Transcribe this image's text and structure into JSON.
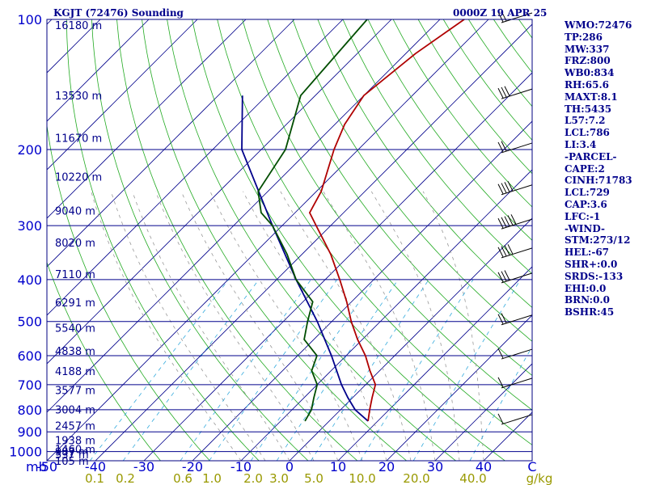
{
  "header": {
    "station": "KGJT (72476) Sounding",
    "time": "0000Z 19 APR 25"
  },
  "pressure_labels": [
    "100",
    "200",
    "300",
    "400",
    "500",
    "600",
    "700",
    "800",
    "900",
    "1000"
  ],
  "pressure_unit": "mb",
  "temp_labels": [
    "-50",
    "-40",
    "-30",
    "-20",
    "-10",
    "0",
    "10",
    "20",
    "30",
    "40",
    "C"
  ],
  "mixing_labels": [
    "0.1",
    "0.2",
    "0.6",
    "1.0",
    "2.0",
    "3.0",
    "5.0",
    "10.0",
    "20.0",
    "40.0",
    "g/kg"
  ],
  "height_labels": [
    "16180 m",
    "13530 m",
    "11670 m",
    "10220 m",
    "9040 m",
    "8020 m",
    "7110 m",
    "6291 m",
    "5540 m",
    "4838 m",
    "4188 m",
    "3577 m",
    "3004 m",
    "2457 m",
    "1938 m",
    "1460 m",
    "987 m",
    "537 m",
    "105 m"
  ],
  "indices": [
    "WMO:72476",
    "TP:286",
    "MW:337",
    "FRZ:800",
    "WB0:834",
    "RH:65.6",
    "MAXT:8.1",
    "TH:5435",
    "L57:7.2",
    "LCL:786",
    "LI:3.4",
    "-PARCEL-",
    "CAPE:2",
    "CINH:71783",
    "LCL:729",
    "CAP:3.6",
    "LFC:-1",
    "-WIND-",
    "STM:273/12",
    "HEL:-67",
    "SHR+:0.0",
    "SRDS:-133",
    "EHI:0.0",
    "BRN:0.0",
    "BSHR:45"
  ],
  "colors": {
    "isobar": "#00008b",
    "temperature": "#b00000",
    "dewpoint": "#004d00",
    "parcel": "#00008b",
    "dry_adiabat": "#22aa22",
    "moist_adiabat": "#999999",
    "mixing_ratio": "#33aadd",
    "isotherm": "#00008b"
  },
  "chart_data": {
    "type": "skew-t",
    "pressure_levels": [
      100,
      150,
      200,
      250,
      300,
      350,
      400,
      450,
      500,
      550,
      600,
      650,
      700,
      750,
      800,
      850,
      900,
      950,
      1000
    ],
    "temperature": [
      {
        "p": 100,
        "t": -55
      },
      {
        "p": 120,
        "t": -58
      },
      {
        "p": 150,
        "t": -60
      },
      {
        "p": 175,
        "t": -58
      },
      {
        "p": 200,
        "t": -55
      },
      {
        "p": 250,
        "t": -49
      },
      {
        "p": 280,
        "t": -47
      },
      {
        "p": 300,
        "t": -43
      },
      {
        "p": 350,
        "t": -34
      },
      {
        "p": 400,
        "t": -27
      },
      {
        "p": 450,
        "t": -21
      },
      {
        "p": 500,
        "t": -16
      },
      {
        "p": 550,
        "t": -11
      },
      {
        "p": 600,
        "t": -6
      },
      {
        "p": 650,
        "t": -2
      },
      {
        "p": 700,
        "t": 2
      },
      {
        "p": 750,
        "t": 4
      },
      {
        "p": 800,
        "t": 6
      },
      {
        "p": 850,
        "t": 8
      }
    ],
    "dewpoint": [
      {
        "p": 100,
        "t": -75
      },
      {
        "p": 150,
        "t": -73
      },
      {
        "p": 200,
        "t": -65
      },
      {
        "p": 250,
        "t": -62
      },
      {
        "p": 280,
        "t": -57
      },
      {
        "p": 300,
        "t": -52
      },
      {
        "p": 350,
        "t": -43
      },
      {
        "p": 400,
        "t": -36
      },
      {
        "p": 450,
        "t": -28
      },
      {
        "p": 500,
        "t": -25
      },
      {
        "p": 550,
        "t": -22
      },
      {
        "p": 600,
        "t": -16
      },
      {
        "p": 650,
        "t": -14
      },
      {
        "p": 700,
        "t": -10
      },
      {
        "p": 750,
        "t": -8
      },
      {
        "p": 800,
        "t": -6
      },
      {
        "p": 850,
        "t": -5
      }
    ],
    "parcel": [
      {
        "p": 850,
        "t": 8
      },
      {
        "p": 800,
        "t": 3
      },
      {
        "p": 750,
        "t": -1
      },
      {
        "p": 700,
        "t": -5
      },
      {
        "p": 600,
        "t": -13
      },
      {
        "p": 500,
        "t": -23
      },
      {
        "p": 400,
        "t": -36
      },
      {
        "p": 300,
        "t": -52
      },
      {
        "p": 200,
        "t": -74
      },
      {
        "p": 150,
        "t": -85
      }
    ],
    "wind_barbs": [
      {
        "p": 100,
        "spd": 20
      },
      {
        "p": 150,
        "spd": 25
      },
      {
        "p": 200,
        "spd": 20
      },
      {
        "p": 250,
        "spd": 35
      },
      {
        "p": 300,
        "spd": 45
      },
      {
        "p": 350,
        "spd": 40
      },
      {
        "p": 400,
        "spd": 25
      },
      {
        "p": 500,
        "spd": 20
      },
      {
        "p": 600,
        "spd": 10
      },
      {
        "p": 700,
        "spd": 10
      },
      {
        "p": 850,
        "spd": 5
      }
    ],
    "xlabel": "",
    "ylabel": "",
    "t_range": [
      -50,
      50
    ],
    "p_range": [
      100,
      1050
    ]
  }
}
